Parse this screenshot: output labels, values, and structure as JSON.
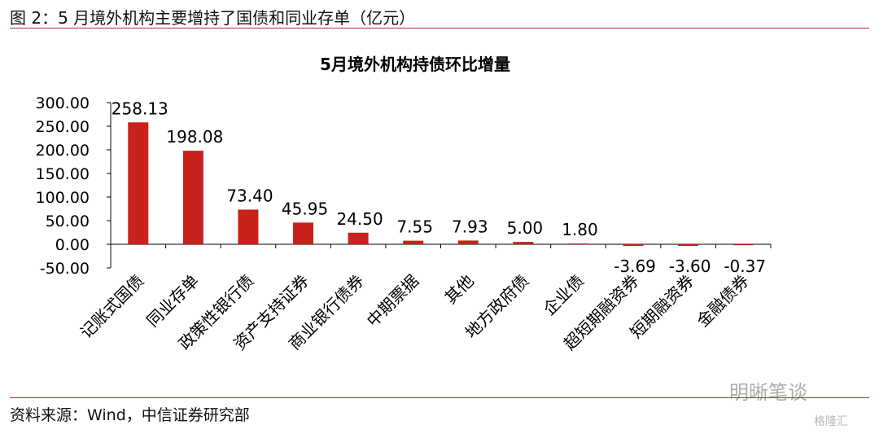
{
  "header": {
    "figure_caption": "图 2：5 月境外机构主要增持了国债和同业存单（亿元）"
  },
  "footer": {
    "source": "资料来源：Wind，中信证券研究部"
  },
  "watermark": {
    "text": "明晰笔谈",
    "logo": "格隆汇"
  },
  "colors": {
    "bar": "#c7221c",
    "rule": "#c0272d",
    "axis": "#000000"
  },
  "chart_data": {
    "type": "bar",
    "title": "5月境外机构持债环比增量",
    "xlabel": "",
    "ylabel": "",
    "categories": [
      "记账式国债",
      "同业存单",
      "政策性银行债",
      "资产支持证券",
      "商业银行债券",
      "中期票据",
      "其他",
      "地方政府债",
      "企业债",
      "超短期融资券",
      "短期融资券",
      "金融债券"
    ],
    "values": [
      258.13,
      198.08,
      73.4,
      45.95,
      24.5,
      7.55,
      7.93,
      5.0,
      1.8,
      -3.69,
      -3.6,
      -0.37
    ],
    "value_labels": [
      "258.13",
      "198.08",
      "73.40",
      "45.95",
      "24.50",
      "7.55",
      "7.93",
      "5.00",
      "1.80",
      "-3.69",
      "-3.60",
      "-0.37"
    ],
    "ylim": [
      -50,
      300
    ],
    "yticks": [
      300,
      250,
      200,
      150,
      100,
      50,
      0,
      -50
    ],
    "ytick_labels": [
      "300.00",
      "250.00",
      "200.00",
      "150.00",
      "100.00",
      "50.00",
      "0.00",
      "-50.00"
    ],
    "grid": false,
    "legend": "none"
  }
}
